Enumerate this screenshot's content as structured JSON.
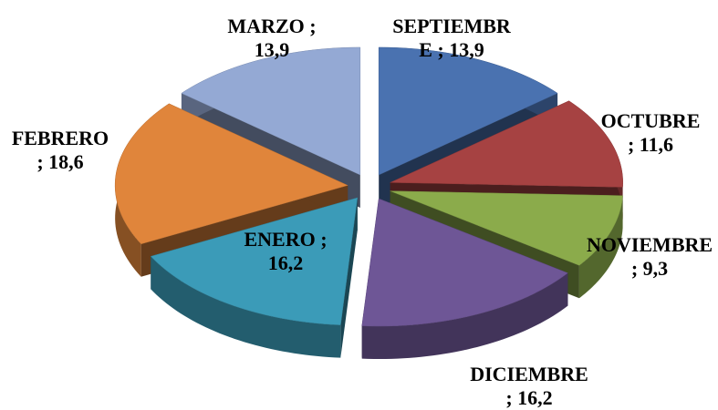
{
  "chart_data": {
    "type": "pie3d",
    "categories": [
      "SEPTIEMBRE",
      "OCTUBRE",
      "NOVIEMBRE",
      "DICIEMBRE",
      "ENERO",
      "FEBRERO",
      "MARZO"
    ],
    "values": [
      13.9,
      11.6,
      9.3,
      16.2,
      16.2,
      18.6,
      13.9
    ],
    "value_labels": [
      "SEPTIEMBRE ; 13,9",
      "OCTUBRE ; 11,6",
      "NOVIEMBRE ; 9,3",
      "DICIEMBRE ; 16,2",
      "ENERO ; 16,2",
      "FEBRERO ; 18,6",
      "MARZO ; 13,9"
    ],
    "colors": [
      "#4a72b0",
      "#a64242",
      "#8bab4b",
      "#6e5696",
      "#3b9bb8",
      "#e0853b",
      "#94a9d4"
    ]
  }
}
